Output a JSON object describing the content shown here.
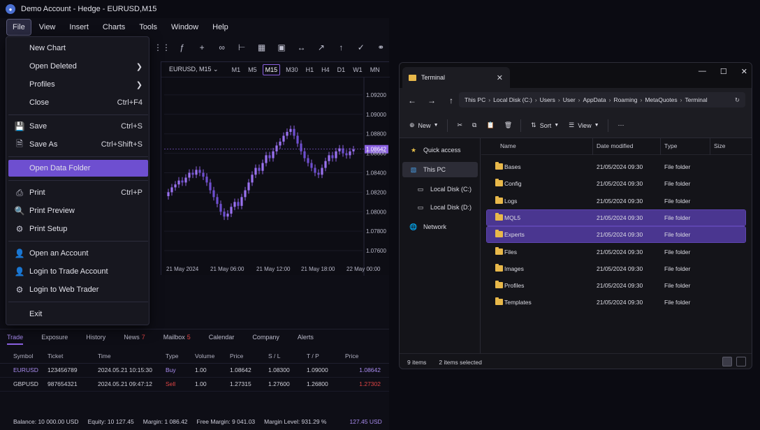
{
  "window": {
    "title": "Demo Account - Hedge - EURUSD,M15"
  },
  "menubar": [
    {
      "label": "File"
    },
    {
      "label": "View"
    },
    {
      "label": "Insert"
    },
    {
      "label": "Charts"
    },
    {
      "label": "Tools"
    },
    {
      "label": "Window"
    },
    {
      "label": "Help"
    }
  ],
  "file_menu": {
    "new_chart": "New Chart",
    "open_deleted": "Open Deleted",
    "profiles": "Profiles",
    "close": "Close",
    "close_sc": "Ctrl+F4",
    "save": "Save",
    "save_sc": "Ctrl+S",
    "save_as": "Save As",
    "save_as_sc": "Ctrl+Shift+S",
    "open_data_folder": "Open Data Folder",
    "print": "Print",
    "print_sc": "Ctrl+P",
    "print_preview": "Print Preview",
    "print_setup": "Print Setup",
    "open_account": "Open an Account",
    "login_trade": "Login to Trade Account",
    "login_web": "Login to Web Trader",
    "exit": "Exit"
  },
  "chart": {
    "symbol": "EURUSD, M15",
    "timeframes": [
      "M1",
      "M5",
      "M15",
      "M30",
      "H1",
      "H4",
      "D1",
      "W1",
      "MN"
    ],
    "selected_timeframe": "M15",
    "price_labels": [
      "1.09200",
      "1.09000",
      "1.08800",
      "1.08600",
      "1.08400",
      "1.08200",
      "1.08000",
      "1.07800",
      "1.07600"
    ],
    "current_price": "1.08642",
    "time_labels": [
      "21 May 2024",
      "21 May 06:00",
      "21 May 12:00",
      "21 May 18:00",
      "22 May 00:00"
    ]
  },
  "chart_data": {
    "type": "candlestick",
    "symbol": "EURUSD",
    "timeframe": "M15",
    "ylim": [
      1.075,
      1.0935
    ],
    "close": [
      1.082,
      1.0825,
      1.0828,
      1.0832,
      1.083,
      1.0835,
      1.084,
      1.0838,
      1.0843,
      1.084,
      1.0836,
      1.083,
      1.0822,
      1.0815,
      1.0808,
      1.08,
      1.0795,
      1.0798,
      1.0805,
      1.081,
      1.0806,
      1.0815,
      1.0822,
      1.083,
      1.0838,
      1.0845,
      1.0842,
      1.085,
      1.0858,
      1.0855,
      1.0862,
      1.0868,
      1.0872,
      1.0878,
      1.0882,
      1.0885,
      1.0878,
      1.087,
      1.0862,
      1.0855,
      1.085,
      1.0845,
      1.084,
      1.0838,
      1.0845,
      1.0852,
      1.0858,
      1.0855,
      1.0862,
      1.0865,
      1.086,
      1.0858,
      1.0862,
      1.0864
    ],
    "last": 1.08642
  },
  "trade_panel": {
    "tabs": [
      {
        "label": "Trade",
        "badge": ""
      },
      {
        "label": "Exposure",
        "badge": ""
      },
      {
        "label": "History",
        "badge": ""
      },
      {
        "label": "News",
        "badge": "7"
      },
      {
        "label": "Mailbox",
        "badge": "5"
      },
      {
        "label": "Calendar",
        "badge": ""
      },
      {
        "label": "Company",
        "badge": ""
      },
      {
        "label": "Alerts",
        "badge": ""
      }
    ],
    "columns": [
      "Symbol",
      "Ticket",
      "Time",
      "Type",
      "Volume",
      "Price",
      "S / L",
      "T / P",
      "Price"
    ],
    "rows": [
      {
        "symbol": "EURUSD",
        "ticket": "123456789",
        "time": "2024.05.21 10:15:30",
        "type": "Buy",
        "volume": "1.00",
        "price": "1.08642",
        "sl": "1.08300",
        "tp": "1.09000",
        "cur": "1.08642"
      },
      {
        "symbol": "GBPUSD",
        "ticket": "987654321",
        "time": "2024.05.21 09:47:12",
        "type": "Sell",
        "volume": "1.00",
        "price": "1.27315",
        "sl": "1.27600",
        "tp": "1.26800",
        "cur": "1.27302"
      }
    ],
    "balance": "Balance: 10 000.00 USD",
    "equity": "Equity: 10 127.45",
    "margin": "Margin: 1 086.42",
    "free_margin": "Free Margin: 9 041.03",
    "margin_level": "Margin Level: 931.29 %",
    "profit": "127.45 USD"
  },
  "explorer": {
    "tab_title": "Terminal",
    "breadcrumb": [
      "This PC",
      "Local Disk (C:)",
      "Users",
      "User",
      "AppData",
      "Roaming",
      "MetaQuotes",
      "Terminal"
    ],
    "commands": {
      "new": "New",
      "sort": "Sort",
      "view": "View"
    },
    "nav": [
      {
        "label": "Quick access",
        "icon": "star-icon"
      },
      {
        "label": "This PC",
        "icon": "monitor-icon"
      },
      {
        "label": "Local Disk (C:)",
        "icon": "drive-icon"
      },
      {
        "label": "Local Disk (D:)",
        "icon": "drive-icon"
      },
      {
        "label": "Network",
        "icon": "network-icon"
      }
    ],
    "columns": [
      "Name",
      "Date modified",
      "Type",
      "Size"
    ],
    "files": [
      {
        "name": "Bases",
        "date": "21/05/2024 09:30",
        "type": "File folder",
        "selected": false
      },
      {
        "name": "Config",
        "date": "21/05/2024 09:30",
        "type": "File folder",
        "selected": false
      },
      {
        "name": "Logs",
        "date": "21/05/2024 09:30",
        "type": "File folder",
        "selected": false
      },
      {
        "name": "MQL5",
        "date": "21/05/2024 09:30",
        "type": "File folder",
        "selected": true
      },
      {
        "name": "Experts",
        "date": "21/05/2024 09:30",
        "type": "File folder",
        "selected": true
      },
      {
        "name": "Files",
        "date": "21/05/2024 09:30",
        "type": "File folder",
        "selected": false
      },
      {
        "name": "Images",
        "date": "21/05/2024 09:30",
        "type": "File folder",
        "selected": false
      },
      {
        "name": "Profiles",
        "date": "21/05/2024 09:30",
        "type": "File folder",
        "selected": false
      },
      {
        "name": "Templates",
        "date": "21/05/2024 09:30",
        "type": "File folder",
        "selected": false
      }
    ],
    "status_items": "9 items",
    "status_selected": "2 items selected"
  },
  "colors": {
    "accent": "#8a60e0",
    "highlight": "#6e4fd0",
    "sell": "#e04545",
    "folder": "#e8b84a"
  }
}
